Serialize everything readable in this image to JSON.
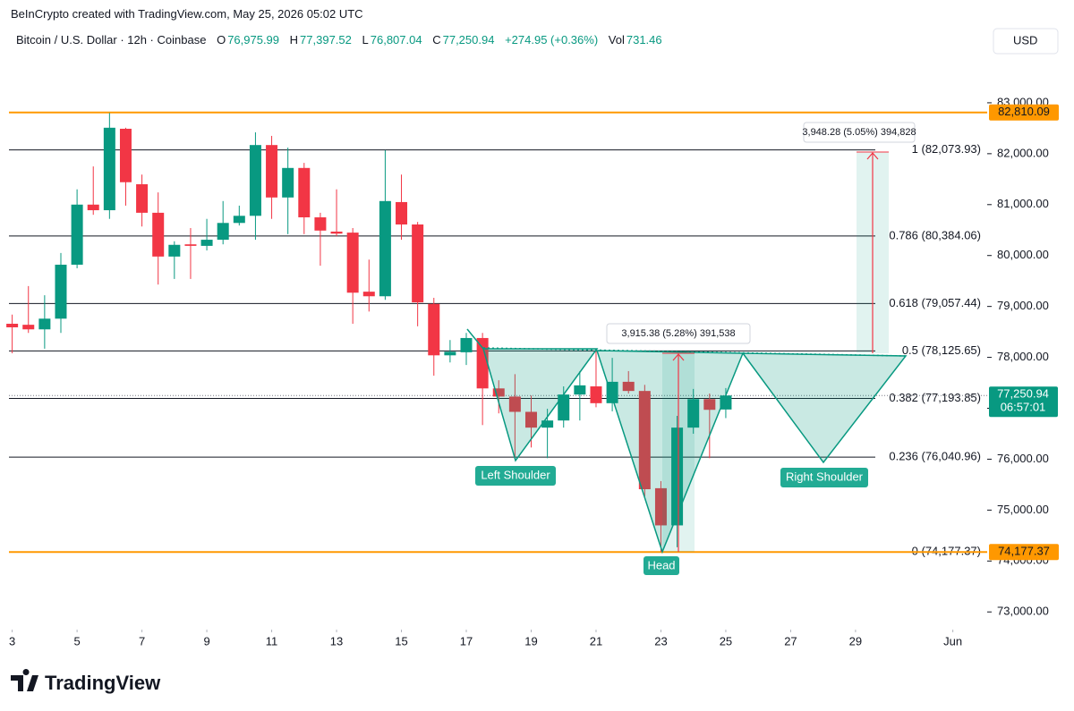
{
  "header": {
    "credit": "BeInCrypto created with TradingView.com, May 25, 2026 05:02 UTC",
    "symbol": "Bitcoin / U.S. Dollar · 12h · Coinbase",
    "ohlc": [
      {
        "key": "O",
        "value": "76,975.99"
      },
      {
        "key": "H",
        "value": "77,397.52"
      },
      {
        "key": "L",
        "value": "76,807.04"
      },
      {
        "key": "C",
        "value": "77,250.94"
      }
    ],
    "change": "+274.95 (+0.36%)",
    "vol_key": "Vol",
    "vol": "731.46",
    "currency": "USD",
    "brand": "TradingView"
  },
  "chart_data": {
    "type": "candlestick",
    "up_color": "#089981",
    "down_color": "#f23645",
    "x": [
      3,
      3.5,
      4,
      4.5,
      5,
      5.5,
      6,
      6.5,
      7,
      7.5,
      8,
      8.5,
      9,
      9.5,
      10,
      10.5,
      11,
      11.5,
      12,
      12.5,
      13,
      13.5,
      14,
      14.5,
      15,
      15.5,
      16,
      16.5,
      17,
      17.5,
      18,
      18.5,
      19,
      19.5,
      20,
      20.5,
      21,
      21.5,
      22,
      22.5,
      23,
      23.5,
      24,
      24.5,
      25
    ],
    "open": [
      78660,
      78640,
      78550,
      78760,
      79820,
      81000,
      80890,
      82490,
      81400,
      80840,
      79980,
      80220,
      80190,
      80310,
      80640,
      80780,
      82170,
      81140,
      81720,
      80750,
      80470,
      80450,
      79290,
      79200,
      81050,
      80610,
      79050,
      78040,
      78100,
      78380,
      77390,
      77230,
      76930,
      76620,
      76760,
      77270,
      77430,
      77100,
      77520,
      77340,
      75430,
      74700,
      76620,
      77180,
      76975.99
    ],
    "high": [
      78840,
      79400,
      79220,
      80050,
      81300,
      81750,
      82800,
      82510,
      81590,
      81240,
      80280,
      80540,
      80720,
      81070,
      80980,
      82420,
      82350,
      82120,
      81820,
      80840,
      81300,
      80540,
      79920,
      82070,
      81590,
      80660,
      79170,
      78340,
      78480,
      78480,
      77550,
      77670,
      77250,
      76990,
      77430,
      77730,
      78170,
      77990,
      77730,
      77460,
      75570,
      76850,
      77380,
      77290,
      77397.52
    ],
    "low": [
      78080,
      78480,
      78170,
      78480,
      79750,
      80800,
      80720,
      80980,
      80570,
      79430,
      79540,
      79540,
      80100,
      80220,
      80590,
      80310,
      80720,
      80420,
      80420,
      79800,
      80380,
      78660,
      78900,
      79130,
      80310,
      78610,
      77640,
      77900,
      77850,
      76670,
      76900,
      76020,
      76230,
      76020,
      76620,
      76760,
      77020,
      76940,
      77290,
      75270,
      74180,
      74270,
      76500,
      76020,
      76807.04
    ],
    "close": [
      78590,
      78550,
      78760,
      79820,
      81000,
      80890,
      82510,
      81440,
      80840,
      79980,
      80210,
      80190,
      80310,
      80640,
      80780,
      82170,
      81140,
      81720,
      80750,
      80490,
      80430,
      79270,
      79200,
      81070,
      80610,
      79080,
      78040,
      78110,
      78380,
      77390,
      77230,
      76930,
      76620,
      76760,
      77270,
      77450,
      77100,
      77520,
      77340,
      75410,
      74700,
      76620,
      77180,
      76970,
      77250.94
    ],
    "xlim": [
      2.9,
      32.7
    ],
    "xticks": [
      3,
      5,
      7,
      9,
      11,
      13,
      15,
      17,
      19,
      21,
      23,
      25,
      27,
      29,
      {
        "value": 32,
        "label": "Jun"
      }
    ],
    "ylim": [
      72600,
      84000
    ],
    "yticks": [
      {
        "value": 73000,
        "label": "73,000.00"
      },
      {
        "value": 74000,
        "label": "74,000.00"
      },
      {
        "value": 75000,
        "label": "75,000.00"
      },
      {
        "value": 76000,
        "label": "76,000.00"
      },
      {
        "value": 77000,
        "label": "77,000.00"
      },
      {
        "value": 78000,
        "label": "78,000.00"
      },
      {
        "value": 79000,
        "label": "79,000.00"
      },
      {
        "value": 80000,
        "label": "80,000.00"
      },
      {
        "value": 81000,
        "label": "81,000.00"
      },
      {
        "value": 82000,
        "label": "82,000.00"
      },
      {
        "value": 83000,
        "label": "83,000.00"
      }
    ],
    "hlines": [
      {
        "value": 82810.09,
        "label": "82,810.09",
        "color": "#ff9800"
      },
      {
        "value": 74177.37,
        "label": "74,177.37",
        "color": "#ff9800"
      }
    ],
    "levels": [
      {
        "value": 82073.93,
        "label": "1 (82,073.93)"
      },
      {
        "value": 80384.06,
        "label": "0.786 (80,384.06)"
      },
      {
        "value": 79057.44,
        "label": "0.618 (79,057.44)"
      },
      {
        "value": 78125.65,
        "label": "0.5 (78,125.65)"
      },
      {
        "value": 77193.85,
        "label": "0.382 (77,193.85)"
      },
      {
        "value": 76040.96,
        "label": "0.236 (76,040.96)"
      },
      {
        "value": 74177.37,
        "label": "0 (74,177.37)"
      }
    ],
    "last": {
      "value": 77250.94,
      "label": "77,250.94",
      "countdown": "06:57:01",
      "color": "#089981"
    },
    "measurements": [
      "3,915.38 (5.28%) 391,538",
      "3,948.28 (5.05%) 394,828"
    ],
    "annotations": [
      "Left Shoulder",
      "Head",
      "Right Shoulder"
    ]
  }
}
